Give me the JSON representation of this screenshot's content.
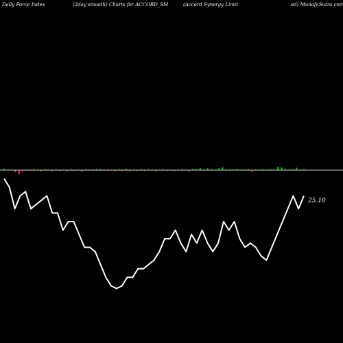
{
  "header": {
    "left_label": "Daily Force  Index",
    "mid_label": "(2day smooth) Charts for ACCORD_SM",
    "company_part1": "(Accord Synergy Limit",
    "company_part2": "ed) MunafaSutra.com"
  },
  "colors": {
    "background": "#000000",
    "zero_line": "#cccccc",
    "force_line": "#ffffff",
    "positive_bar": "#00cc00",
    "negative_bar": "#ff3333"
  },
  "chart_data": {
    "type": "line",
    "title": "Daily Force Index (2day smooth) Charts for ACCORD_SM",
    "last_value_label": "25.10",
    "series": [
      {
        "values": [
          -1.0,
          -2.0,
          -4.5,
          -3.0,
          -2.5,
          -4.5,
          -4.0,
          -3.5,
          -3.0,
          -5.0,
          -5.0,
          -7.0,
          -6.0,
          -6.0,
          -7.5,
          -9.0,
          -9.0,
          -9.5,
          -11.0,
          -12.5,
          -13.5,
          -13.8,
          -13.5,
          -12.5,
          -12.5,
          -11.5,
          -11.5,
          -11.0,
          -10.5,
          -9.5,
          -8.0,
          -8.0,
          -7.0,
          -8.5,
          -9.5,
          -7.5,
          -8.5,
          -7.0,
          -8.5,
          -9.5,
          -8.5,
          -6.0,
          -7.0,
          -6.0,
          -8.0,
          -9.0,
          -8.5,
          -9.0,
          -10.0,
          -10.5,
          -9.0,
          -7.5,
          -6.0,
          -4.5,
          -3.0,
          -4.5,
          -3.0
        ]
      }
    ],
    "bars": [
      0.4,
      0.2,
      0.1,
      -0.5,
      -1.2,
      -0.4,
      0.2,
      -0.2,
      0.3,
      0.2,
      -0.3,
      0.3,
      0.2,
      -0.3,
      0.2,
      -0.2,
      0.2,
      -0.3,
      0.3,
      -0.2,
      0.2,
      -0.4,
      0.3,
      0.2,
      -0.2,
      0.3,
      0.3,
      -0.2,
      0.2,
      0.2,
      -0.3,
      0.3,
      -0.2,
      0.4,
      -0.3,
      0.2,
      -0.2,
      0.3,
      -0.2,
      0.3,
      0.2,
      -0.3,
      0.2,
      0.3,
      -0.2,
      0.2,
      -0.3,
      0.2,
      0.3,
      0.2,
      -0.3,
      0.4,
      0.3,
      0.6,
      0.2,
      0.5,
      0.3,
      0.2,
      0.5,
      0.8,
      0.3,
      0.2,
      0.2,
      0.4,
      0.2,
      0.2,
      0.3,
      -0.5,
      0.2,
      0.2,
      0.3,
      0.2,
      0.3,
      0.2,
      1.0,
      0.8,
      0.3,
      0.2,
      0.3,
      0.7,
      0.2,
      0.3
    ],
    "grid": false,
    "legend": "none"
  }
}
